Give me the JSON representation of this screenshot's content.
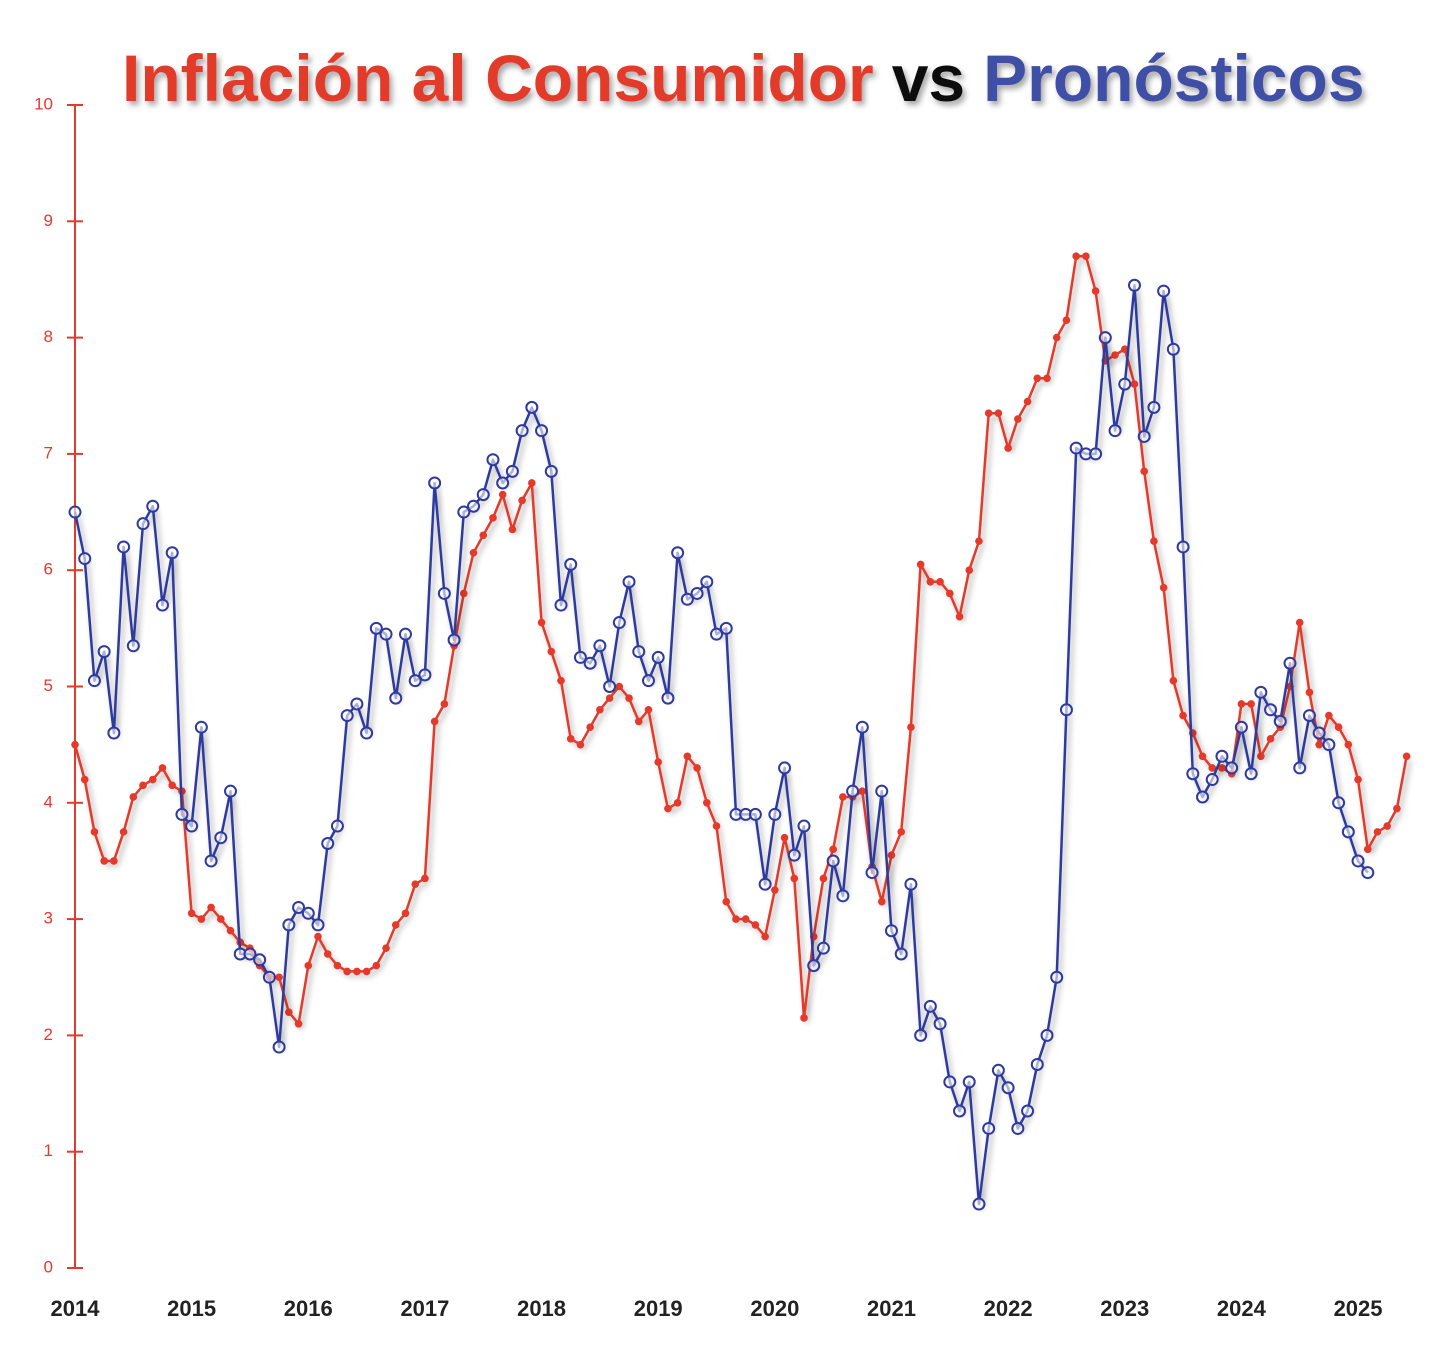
{
  "chart_data": {
    "type": "line",
    "title": [
      {
        "text": "Inflación al Consumidor",
        "color": "#e33a2c"
      },
      {
        "text": "vs",
        "color": "#111111"
      },
      {
        "text": "Pronósticos",
        "color": "#3f4fa6"
      }
    ],
    "categories": [
      "2014",
      null,
      null,
      null,
      null,
      null,
      null,
      null,
      null,
      null,
      null,
      null,
      "2015",
      null,
      null,
      null,
      null,
      null,
      null,
      null,
      null,
      null,
      null,
      null,
      "2016",
      null,
      null,
      null,
      null,
      null,
      null,
      null,
      null,
      null,
      null,
      null,
      "2017",
      null,
      null,
      null,
      null,
      null,
      null,
      null,
      null,
      null,
      null,
      null,
      "2018",
      null,
      null,
      null,
      null,
      null,
      null,
      null,
      null,
      null,
      null,
      null,
      "2019",
      null,
      null,
      null,
      null,
      null,
      null,
      null,
      null,
      null,
      null,
      null,
      "2020",
      null,
      null,
      null,
      null,
      null,
      null,
      null,
      null,
      null,
      null,
      null,
      "2021",
      null,
      null,
      null,
      null,
      null,
      null,
      null,
      null,
      null,
      null,
      null,
      "2022",
      null,
      null,
      null,
      null,
      null,
      null,
      null,
      null,
      null,
      null,
      null,
      "2023",
      null,
      null,
      null,
      null,
      null,
      null,
      null,
      null,
      null,
      null,
      null,
      "2024",
      null,
      null,
      null,
      null,
      null,
      null,
      null,
      null,
      null,
      null,
      null,
      "2025",
      null,
      null,
      null,
      null,
      null
    ],
    "series": [
      {
        "color": "#e33a2c",
        "marker": "dot",
        "values": [
          4.5,
          4.2,
          3.75,
          3.5,
          3.5,
          3.75,
          4.05,
          4.15,
          4.2,
          4.3,
          4.15,
          4.1,
          3.05,
          3.0,
          3.1,
          3.0,
          2.9,
          2.8,
          2.75,
          2.6,
          2.5,
          2.5,
          2.2,
          2.1,
          2.6,
          2.85,
          2.7,
          2.6,
          2.55,
          2.55,
          2.55,
          2.6,
          2.75,
          2.95,
          3.05,
          3.3,
          3.35,
          4.7,
          4.85,
          5.35,
          5.8,
          6.15,
          6.3,
          6.45,
          6.65,
          6.35,
          6.6,
          6.75,
          5.55,
          5.3,
          5.05,
          4.55,
          4.5,
          4.65,
          4.8,
          4.9,
          5.0,
          4.9,
          4.7,
          4.8,
          4.35,
          3.95,
          4.0,
          4.4,
          4.3,
          4.0,
          3.8,
          3.15,
          3.0,
          3.0,
          2.95,
          2.85,
          3.25,
          3.7,
          3.35,
          2.15,
          2.85,
          3.35,
          3.6,
          4.05,
          4.05,
          4.1,
          3.45,
          3.15,
          3.55,
          3.75,
          4.65,
          6.05,
          5.9,
          5.9,
          5.8,
          5.6,
          6.0,
          6.25,
          7.35,
          7.35,
          7.05,
          7.3,
          7.45,
          7.65,
          7.65,
          8.0,
          8.15,
          8.7,
          8.7,
          8.4,
          7.8,
          7.85,
          7.9,
          7.6,
          6.85,
          6.25,
          5.85,
          5.05,
          4.75,
          4.6,
          4.4,
          4.3,
          4.3,
          4.25,
          4.85,
          4.85,
          4.4,
          4.55,
          4.65,
          5.0,
          5.55,
          4.95,
          4.5,
          4.75,
          4.65,
          4.5,
          4.2,
          3.6,
          3.75,
          3.8,
          3.95,
          4.4
        ]
      },
      {
        "color": "#2e3a9e",
        "marker": "circle",
        "values": [
          6.5,
          6.1,
          5.05,
          5.3,
          4.6,
          6.2,
          5.35,
          6.4,
          6.55,
          5.7,
          6.15,
          3.9,
          3.8,
          4.65,
          3.5,
          3.7,
          4.1,
          2.7,
          2.7,
          2.65,
          2.5,
          1.9,
          2.95,
          3.1,
          3.05,
          2.95,
          3.65,
          3.8,
          4.75,
          4.85,
          4.6,
          5.5,
          5.45,
          4.9,
          5.45,
          5.05,
          5.1,
          6.75,
          5.8,
          5.4,
          6.5,
          6.55,
          6.65,
          6.95,
          6.75,
          6.85,
          7.2,
          7.4,
          7.2,
          6.85,
          5.7,
          6.05,
          5.25,
          5.2,
          5.35,
          5.0,
          5.55,
          5.9,
          5.3,
          5.05,
          5.25,
          4.9,
          6.15,
          5.75,
          5.8,
          5.9,
          5.45,
          5.5,
          3.9,
          3.9,
          3.9,
          3.3,
          3.9,
          4.3,
          3.55,
          3.8,
          2.6,
          2.75,
          3.5,
          3.2,
          4.1,
          4.65,
          3.4,
          4.1,
          2.9,
          2.7,
          3.3,
          2.0,
          2.25,
          2.1,
          1.6,
          1.35,
          1.6,
          0.55,
          1.2,
          1.7,
          1.55,
          1.2,
          1.35,
          1.75,
          2.0,
          2.5,
          4.8,
          7.05,
          7.0,
          7.0,
          8.0,
          7.2,
          7.6,
          8.45,
          7.15,
          7.4,
          8.4,
          7.9,
          6.2,
          4.25,
          4.05,
          4.2,
          4.4,
          4.3,
          4.65,
          4.25,
          4.95,
          4.8,
          4.7,
          5.2,
          4.3,
          4.75,
          4.6,
          4.5,
          4.0,
          3.75,
          3.5,
          3.4,
          null,
          null,
          null,
          null
        ]
      }
    ],
    "ylim": [
      0,
      10
    ],
    "yticks": [
      0,
      1,
      2,
      3,
      4,
      5,
      6,
      7,
      8,
      9,
      10
    ],
    "axis_color": "#e33a2c",
    "grid": false
  }
}
